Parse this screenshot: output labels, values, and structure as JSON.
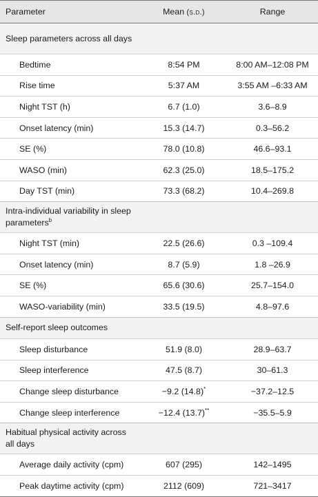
{
  "header": {
    "parameter": "Parameter",
    "mean": "Mean",
    "mean_sd": "(s.d.)",
    "range": "Range"
  },
  "sections": [
    {
      "title": "Sleep parameters across all days",
      "rows": [
        {
          "label": "Bedtime",
          "mean": "8:54 PM",
          "range": "8:00 AM–12:08 PM"
        },
        {
          "label": "Rise time",
          "mean": "5:37 AM",
          "range": "3:55 AM –6:33 AM"
        },
        {
          "label": "Night TST (h)",
          "mean": "6.7 (1.0)",
          "range": "3.6–8.9"
        },
        {
          "label": "Onset latency (min)",
          "mean": "15.3 (14.7)",
          "range": "0.3–56.2"
        },
        {
          "label": "SE (%)",
          "mean": "78.0 (10.8)",
          "range": "46.6–93.1"
        },
        {
          "label": "WASO (min)",
          "mean": "62.3 (25.0)",
          "range": "18.5–175.2"
        },
        {
          "label": "Day TST (min)",
          "mean": "73.3 (68.2)",
          "range": "10.4–269.8"
        }
      ]
    },
    {
      "title": "Intra-individual variability in sleep parameters",
      "title_sup": "b",
      "rows": [
        {
          "label": "Night TST (min)",
          "mean": "22.5 (26.6)",
          "range": "0.3 –109.4"
        },
        {
          "label": "Onset latency (min)",
          "mean": "8.7 (5.9)",
          "range": "1.8 –26.9"
        },
        {
          "label": "SE (%)",
          "mean": "65.6 (30.6)",
          "range": "25.7–154.0"
        },
        {
          "label": "WASO-variability (min)",
          "mean": "33.5 (19.5)",
          "range": "4.8–97.6"
        }
      ]
    },
    {
      "title": "Self-report sleep outcomes",
      "rows": [
        {
          "label": "Sleep disturbance",
          "mean": "51.9 (8.0)",
          "range": "28.9–63.7"
        },
        {
          "label": "Sleep interference",
          "mean": "47.5 (8.7)",
          "range": "30–61.3"
        },
        {
          "label": "Change sleep disturbance",
          "mean": "−9.2 (14.8)",
          "mean_sup": "*",
          "range": "−37.2–12.5"
        },
        {
          "label": "Change sleep interference",
          "mean": "−12.4 (13.7)",
          "mean_sup": "**",
          "range": "−35.5–5.9"
        }
      ]
    },
    {
      "title": "Habitual physical activity across all days",
      "rows": [
        {
          "label": "Average daily activity (cpm)",
          "mean": "607 (295)",
          "range": "142–1495"
        },
        {
          "label": "Peak daytime activity (cpm)",
          "mean": "2112 (609)",
          "range": "721–3417"
        }
      ]
    }
  ]
}
